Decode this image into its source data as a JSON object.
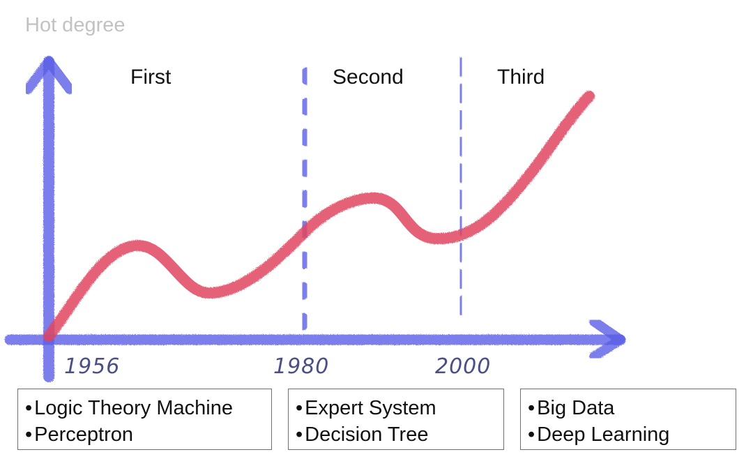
{
  "y_axis_label": "Hot degree",
  "eras": [
    {
      "label": "First"
    },
    {
      "label": "Second"
    },
    {
      "label": "Third"
    }
  ],
  "years": [
    {
      "label": "1956"
    },
    {
      "label": "1980"
    },
    {
      "label": "2000"
    }
  ],
  "boxes": [
    {
      "items": [
        "Logic Theory Machine",
        "Perceptron"
      ]
    },
    {
      "items": [
        "Expert System",
        "Decision Tree"
      ]
    },
    {
      "items": [
        "Big Data",
        "Deep Learning"
      ]
    }
  ],
  "colors": {
    "axis": "#5b5fe6",
    "curve": "#e0445f",
    "divider": "#5b5fe6",
    "axis_label": "#c2c2c2",
    "year_text": "#4a4f86"
  }
}
